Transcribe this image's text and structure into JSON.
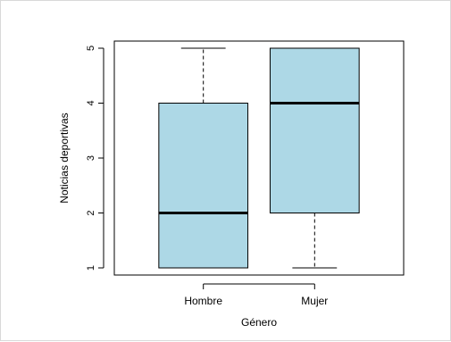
{
  "chart_data": {
    "type": "box",
    "title": "",
    "xlabel": "Género",
    "ylabel": "Noticias deportivas",
    "ylim": [
      0.87,
      5.13
    ],
    "y_ticks": [
      1,
      2,
      3,
      4,
      5
    ],
    "categories": [
      "Hombre",
      "Mujer"
    ],
    "boxes": [
      {
        "category": "Hombre",
        "min": 1,
        "q1": 1,
        "median": 2,
        "q3": 4,
        "max": 5
      },
      {
        "category": "Mujer",
        "min": 1,
        "q1": 2,
        "median": 4,
        "q3": 5,
        "max": 5
      }
    ],
    "colors": {
      "box_fill": "#add8e6",
      "line": "#000000",
      "frame": "#000000"
    },
    "grid": false,
    "legend": "none"
  }
}
